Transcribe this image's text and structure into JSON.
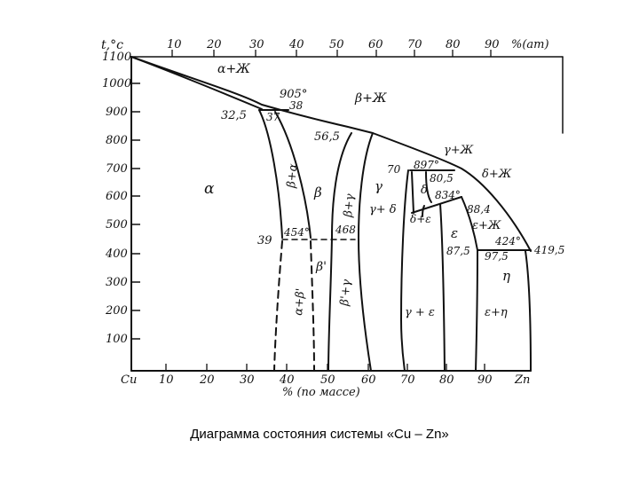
{
  "caption": "Диаграмма состояния системы «Cu – Zn»",
  "axes": {
    "y_title": "t,°c",
    "top_unit": "%(am)",
    "bottom_title": "% (по массе)",
    "left_element": "Cu",
    "right_element": "Zn",
    "top_ticks": [
      "10",
      "20",
      "30",
      "40",
      "50",
      "60",
      "70",
      "80",
      "90"
    ],
    "bottom_ticks": [
      "10",
      "20",
      "30",
      "40",
      "50",
      "60",
      "70",
      "80",
      "90"
    ],
    "y_ticks": [
      "1100",
      "1000",
      "900",
      "800",
      "700",
      "600",
      "500",
      "400",
      "300",
      "200",
      "100"
    ]
  },
  "temperatures": {
    "t905": "905°",
    "t897": "897°",
    "t834": "834°",
    "t454": "454°",
    "t468": "468",
    "t424": "424°",
    "t419": "419,5"
  },
  "compositions": {
    "c32_5": "32,5",
    "c37": "37",
    "c38": "38",
    "c56_5": "56,5",
    "c70": "70",
    "c80_5": "80,5",
    "c88_4": "88,4",
    "c39": "39",
    "c87_5a": "87,5",
    "c87_5b": "97,5"
  },
  "phases": {
    "alpha": "α",
    "alpha_liq": "α+Ж",
    "beta_liq": "β+Ж",
    "gamma_liq": "γ+Ж",
    "delta_liq": "δ+Ж",
    "eps_liq": "ε+Ж",
    "alpha_beta": "β+α",
    "beta": "β",
    "beta_gamma": "β+γ",
    "gamma": "γ",
    "gamma_delta": "γ+ δ",
    "delta": "δ",
    "delta_eps": "δ+ε",
    "epsilon": "ε",
    "eta": "η",
    "beta_prime": "β'",
    "alpha_beta_prime": "α+β'",
    "beta_gamma_prime": "β'+γ",
    "gamma_eps": "γ + ε",
    "eps_eta": "ε+η"
  }
}
